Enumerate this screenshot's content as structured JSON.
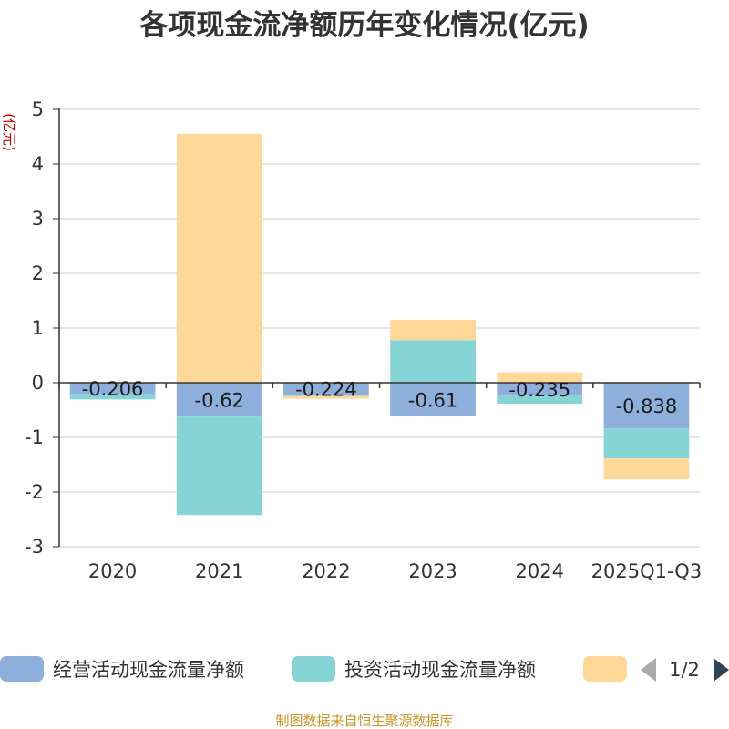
{
  "chart_data": {
    "type": "bar",
    "stacked": true,
    "title": "各项现金流净额历年变化情况(亿元)",
    "ylabel": "(亿元)",
    "categories": [
      "2020",
      "2021",
      "2022",
      "2023",
      "2024",
      "2025Q1-Q3"
    ],
    "ylim": [
      -3,
      5
    ],
    "yticks": [
      5,
      4,
      3,
      2,
      1,
      0,
      -1,
      -2,
      -3
    ],
    "series": [
      {
        "name": "经营活动现金流量净额",
        "color": "#8eaedb",
        "values": [
          -0.206,
          -0.62,
          -0.224,
          -0.61,
          -0.235,
          -0.838
        ],
        "labels": [
          "-0.206",
          "-0.62",
          "-0.224",
          "-0.61",
          "-0.235",
          "-0.838"
        ]
      },
      {
        "name": "投资活动现金流量净额",
        "color": "#86d4d6",
        "values": [
          -0.1,
          -1.8,
          -0.02,
          0.78,
          -0.15,
          -0.55
        ]
      },
      {
        "name": "",
        "color": "#fed898",
        "values": [
          0.0,
          4.55,
          -0.05,
          0.37,
          0.19,
          -0.38
        ]
      }
    ],
    "legend": {
      "placement": "bottom",
      "page": "1/2"
    },
    "source": "制图数据来自恒生聚源数据库"
  }
}
